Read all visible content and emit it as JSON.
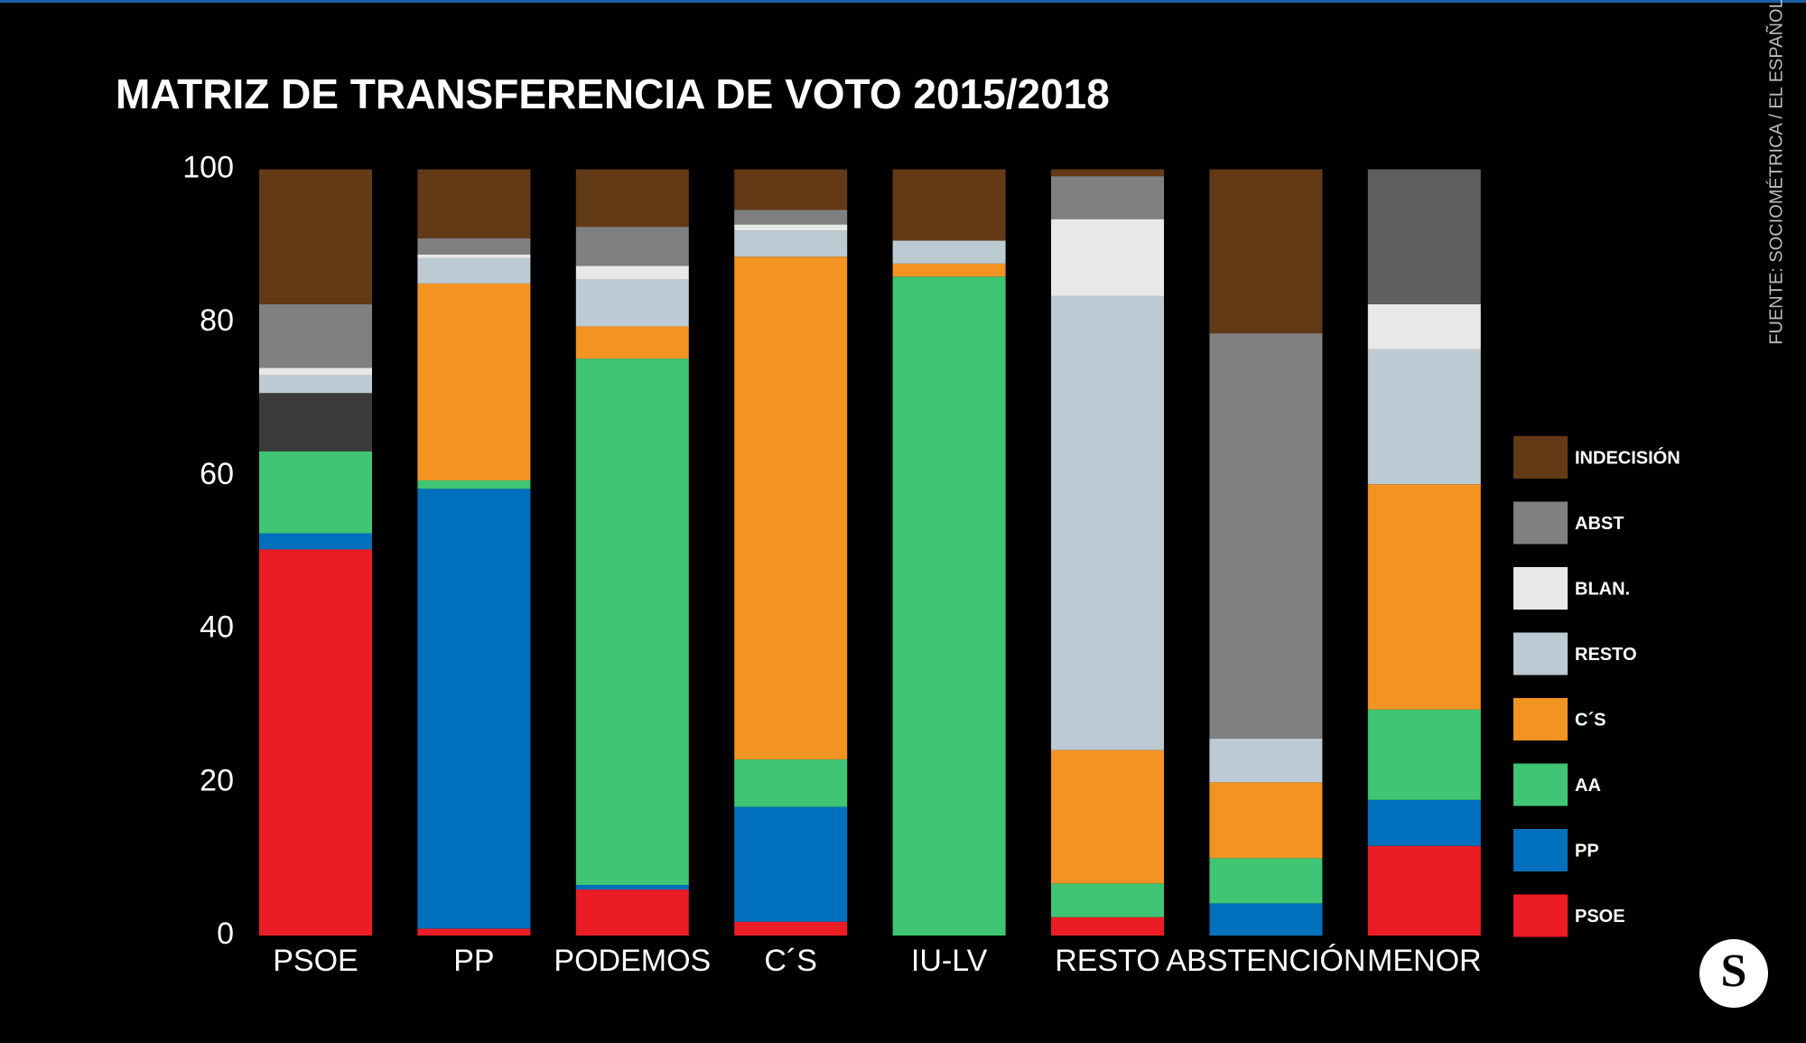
{
  "chart_data": {
    "type": "stacked-bar",
    "title": "MATRIZ DE TRANSFERENCIA DE VOTO 2015/2018",
    "source": "FUENTE: SOCIOMÉTRICA / EL ESPAÑOL",
    "logo": "S",
    "categories": [
      "PSOE",
      "PP",
      "PODEMOS",
      "C´S",
      "IU-LV",
      "RESTO",
      "ABSTENCIÓN",
      "MENOR"
    ],
    "ylim": [
      0,
      100
    ],
    "yticks": [
      0,
      20,
      40,
      60,
      80,
      100
    ],
    "grid": false,
    "legend": "right",
    "series": [
      {
        "name": "PSOE",
        "color": "#ec1c24",
        "values": [
          50.4,
          0.9,
          6.0,
          1.8,
          0,
          2.4,
          0,
          11.7
        ]
      },
      {
        "name": "PP",
        "color": "#0070bd",
        "values": [
          2.1,
          57.4,
          0.6,
          15.0,
          0,
          0,
          4.2,
          6.0
        ]
      },
      {
        "name": "AA",
        "color": "#3fc574",
        "values": [
          10.7,
          1.1,
          68.7,
          6.2,
          86.0,
          4.4,
          5.9,
          11.8
        ]
      },
      {
        "name": null,
        "color": "#3b3b3b",
        "values": [
          7.6,
          0,
          0,
          0,
          0,
          0,
          0,
          0
        ]
      },
      {
        "name": "C´S",
        "color": "#f39422",
        "values": [
          0,
          25.7,
          4.2,
          65.6,
          1.7,
          17.4,
          9.9,
          29.4
        ]
      },
      {
        "name": "RESTO",
        "color": "#bccbd3",
        "values": [
          2.3,
          3.3,
          6.1,
          3.4,
          3.0,
          59.3,
          5.7,
          17.6
        ]
      },
      {
        "name": "BLAN.",
        "color": "#e8e8e8",
        "values": [
          1.0,
          0.5,
          1.8,
          0.8,
          0,
          10.0,
          0,
          5.9
        ]
      },
      {
        "name": "ABST",
        "color": "#808080",
        "values": [
          8.3,
          2.1,
          5.1,
          1.9,
          0,
          5.6,
          52.9,
          0
        ]
      },
      {
        "name": null,
        "color": "#5f5f5f",
        "values": [
          0,
          0,
          0,
          0,
          0,
          0,
          0,
          17.6
        ]
      },
      {
        "name": "INDECISIÓN",
        "color": "#633a16",
        "values": [
          17.6,
          9.0,
          7.5,
          5.3,
          9.3,
          0.9,
          21.4,
          0
        ]
      }
    ]
  }
}
